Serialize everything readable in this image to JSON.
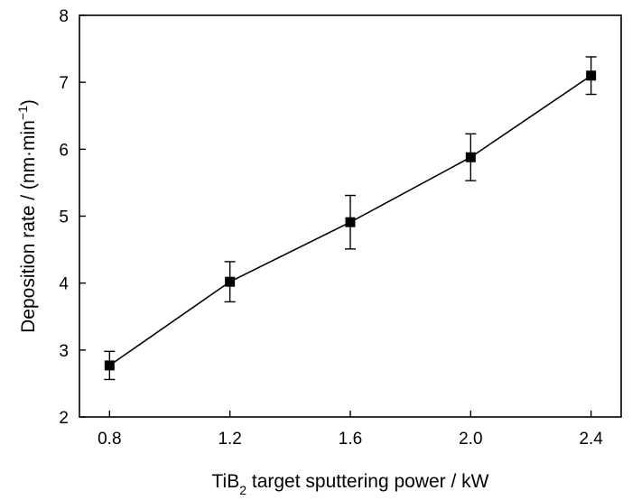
{
  "chart_data": {
    "type": "scatter",
    "title": "",
    "xlabel": {
      "pre": "TiB",
      "sub": "2",
      "post": " target sputtering power / kW"
    },
    "ylabel": {
      "pre": "Deposition rate / (nm·min",
      "sup": "−1",
      "post": ")"
    },
    "xlim": [
      0.7,
      2.5
    ],
    "ylim": [
      2,
      8
    ],
    "xticks": [
      0.8,
      1.2,
      1.6,
      2.0,
      2.4
    ],
    "xtick_labels": [
      "0.8",
      "1.2",
      "1.6",
      "2.0",
      "2.4"
    ],
    "yticks": [
      2,
      3,
      4,
      5,
      6,
      7,
      8
    ],
    "ytick_labels": [
      "2",
      "3",
      "4",
      "5",
      "6",
      "7",
      "8"
    ],
    "grid": false,
    "series": [
      {
        "x": [
          0.8,
          1.2,
          1.6,
          2.0,
          2.4
        ],
        "y": [
          2.77,
          4.02,
          4.91,
          5.88,
          7.1
        ],
        "yerr": [
          0.21,
          0.3,
          0.4,
          0.35,
          0.28
        ],
        "marker": "square",
        "color": "#000000",
        "line": true
      }
    ]
  }
}
